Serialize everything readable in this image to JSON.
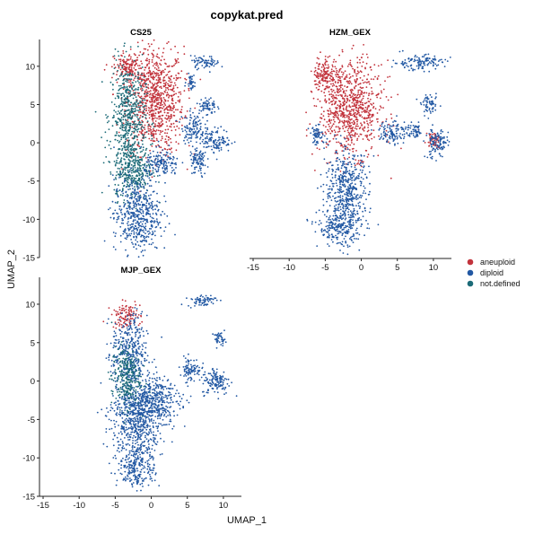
{
  "chart_data": {
    "type": "scatter",
    "title": "copykat.pred",
    "xlabel": "UMAP_1",
    "ylabel": "UMAP_2",
    "xlim": [
      -15.5,
      12.5
    ],
    "ylim": [
      -15,
      13.5
    ],
    "xticks": [
      -15,
      -10,
      -5,
      0,
      5,
      10
    ],
    "yticks": [
      -15,
      -10,
      -5,
      0,
      5,
      10
    ],
    "legend": {
      "position": "right",
      "entries": [
        {
          "label": "aneuploid",
          "color": "#c2333c"
        },
        {
          "label": "diploid",
          "color": "#2258a3"
        },
        {
          "label": "not.defined",
          "color": "#1c6b78"
        }
      ]
    },
    "panels": [
      {
        "name": "CS25",
        "clusters": [
          {
            "class": "aneuploid",
            "x": 0.5,
            "y": 5.5,
            "sx": 2.0,
            "sy": 3.5
          },
          {
            "class": "aneuploid",
            "x": -3.2,
            "y": 9.8,
            "sx": 1.0,
            "sy": 1.0
          },
          {
            "class": "not.defined",
            "x": -3.2,
            "y": 3.5,
            "sx": 1.2,
            "sy": 3.5
          },
          {
            "class": "not.defined",
            "x": -2.5,
            "y": -3.5,
            "sx": 1.3,
            "sy": 2.0
          },
          {
            "class": "diploid",
            "x": -2.0,
            "y": -9.5,
            "sx": 1.6,
            "sy": 2.5
          },
          {
            "class": "diploid",
            "x": 9.0,
            "y": 0.3,
            "sx": 1.0,
            "sy": 0.8
          },
          {
            "class": "diploid",
            "x": 5.8,
            "y": 2.0,
            "sx": 0.8,
            "sy": 1.0
          },
          {
            "class": "diploid",
            "x": 7.8,
            "y": 4.8,
            "sx": 0.6,
            "sy": 0.6
          },
          {
            "class": "diploid",
            "x": 7.5,
            "y": 10.5,
            "sx": 1.0,
            "sy": 0.4
          },
          {
            "class": "diploid",
            "x": 1.5,
            "y": -2.8,
            "sx": 1.2,
            "sy": 0.9
          },
          {
            "class": "diploid",
            "x": 6.5,
            "y": -2.5,
            "sx": 0.6,
            "sy": 1.0
          },
          {
            "class": "diploid",
            "x": 5.5,
            "y": 8.0,
            "sx": 0.3,
            "sy": 0.5
          }
        ]
      },
      {
        "name": "HZM_GEX",
        "clusters": [
          {
            "class": "aneuploid",
            "x": -1.5,
            "y": 4.5,
            "sx": 2.2,
            "sy": 3.0
          },
          {
            "class": "aneuploid",
            "x": -5.0,
            "y": 9.0,
            "sx": 0.8,
            "sy": 1.2
          },
          {
            "class": "aneuploid",
            "x": 10.0,
            "y": 0.5,
            "sx": 0.5,
            "sy": 0.5
          },
          {
            "class": "diploid",
            "x": 8.0,
            "y": 10.5,
            "sx": 1.8,
            "sy": 0.5
          },
          {
            "class": "diploid",
            "x": -2.0,
            "y": -6.0,
            "sx": 1.5,
            "sy": 2.5
          },
          {
            "class": "diploid",
            "x": -3.0,
            "y": -11.0,
            "sx": 1.5,
            "sy": 1.2
          },
          {
            "class": "diploid",
            "x": 10.5,
            "y": 0.0,
            "sx": 0.8,
            "sy": 1.0
          },
          {
            "class": "diploid",
            "x": -6.0,
            "y": 1.0,
            "sx": 0.6,
            "sy": 0.6
          },
          {
            "class": "diploid",
            "x": 4.5,
            "y": 1.5,
            "sx": 1.0,
            "sy": 0.8
          },
          {
            "class": "diploid",
            "x": 9.5,
            "y": 5.0,
            "sx": 0.6,
            "sy": 0.6
          },
          {
            "class": "diploid",
            "x": 7.5,
            "y": 1.5,
            "sx": 0.5,
            "sy": 0.5
          }
        ]
      },
      {
        "name": "MJP_GEX",
        "clusters": [
          {
            "class": "aneuploid",
            "x": -3.5,
            "y": 8.5,
            "sx": 1.0,
            "sy": 0.8
          },
          {
            "class": "diploid",
            "x": -2.0,
            "y": -5.0,
            "sx": 1.8,
            "sy": 2.5
          },
          {
            "class": "diploid",
            "x": 0.0,
            "y": -2.5,
            "sx": 2.0,
            "sy": 1.5
          },
          {
            "class": "diploid",
            "x": -2.0,
            "y": -11.0,
            "sx": 1.3,
            "sy": 1.5
          },
          {
            "class": "diploid",
            "x": -3.0,
            "y": 3.5,
            "sx": 1.2,
            "sy": 2.5
          },
          {
            "class": "diploid",
            "x": 9.0,
            "y": 0.0,
            "sx": 1.0,
            "sy": 0.9
          },
          {
            "class": "diploid",
            "x": 5.5,
            "y": 1.5,
            "sx": 0.7,
            "sy": 0.8
          },
          {
            "class": "diploid",
            "x": 7.0,
            "y": 10.5,
            "sx": 1.0,
            "sy": 0.4
          },
          {
            "class": "diploid",
            "x": 9.5,
            "y": 5.5,
            "sx": 0.4,
            "sy": 0.4
          },
          {
            "class": "not.defined",
            "x": -3.5,
            "y": 0.5,
            "sx": 1.0,
            "sy": 2.0
          }
        ]
      }
    ]
  }
}
